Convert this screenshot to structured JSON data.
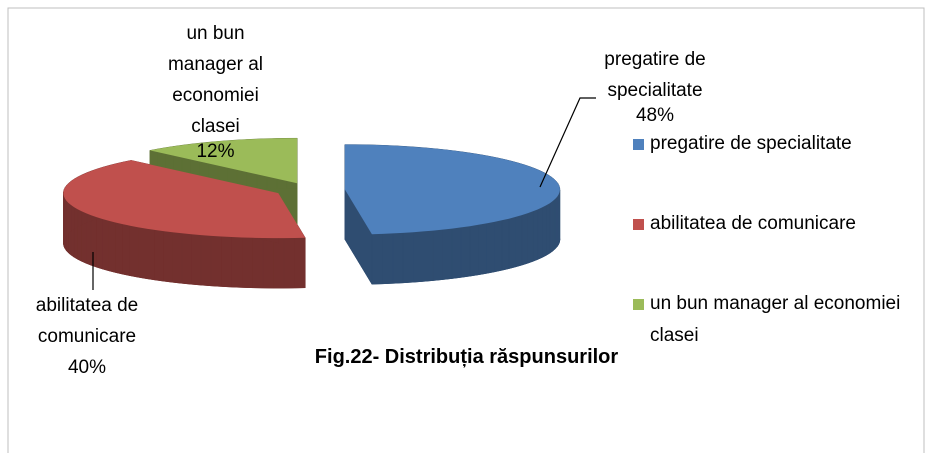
{
  "chart_data": {
    "type": "pie3d",
    "title": "Fig.22- Distribuția răspunsurilor",
    "categories": [
      "pregatire de specialitate",
      "abilitatea de comunicare",
      "un bun manager al economiei clasei"
    ],
    "values": [
      48,
      40,
      12
    ],
    "value_labels": [
      "48%",
      "40%",
      "12%"
    ],
    "colors": [
      "#4f81bd",
      "#c0504d",
      "#9bbb59"
    ],
    "legend": "right"
  }
}
